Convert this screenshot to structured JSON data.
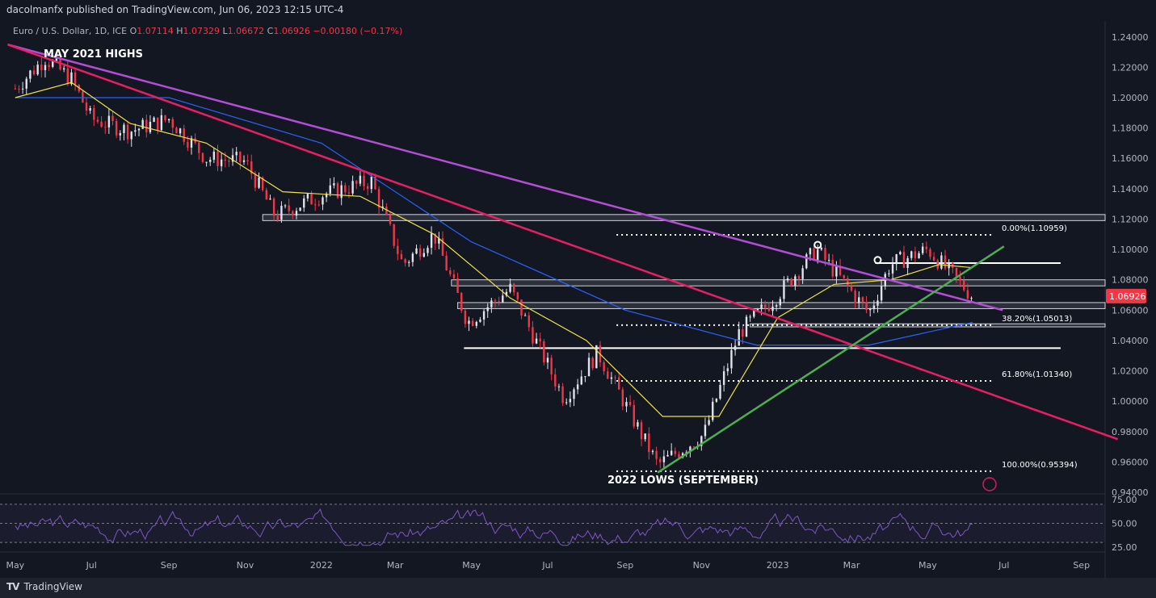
{
  "header": {
    "published": "dacolmanfx published on TradingView.com, Jun 06, 2023 12:15 UTC-4"
  },
  "legend": {
    "symbol": "Euro / U.S. Dollar, 1D, ICE",
    "o_label": "O",
    "o": "1.07114",
    "h_label": "H",
    "h": "1.07329",
    "l_label": "L",
    "l": "1.06672",
    "c_label": "C",
    "c": "1.06926",
    "change": "−0.00180 (−0.17%)"
  },
  "annotations": {
    "highs": "MAY 2021 HIGHS",
    "lows": "2022 LOWS (SEPTEMBER)"
  },
  "footer": {
    "brand": "TradingView",
    "logo_icon": "tradingview-logo-icon"
  },
  "colors": {
    "background": "#131722",
    "up": "#e0e3eb",
    "down": "#f23645",
    "purple_trend": "#b44dd6",
    "red_trend": "#e91e63",
    "green_trend": "#4caf50",
    "ma50": "#f0e04a",
    "ma200": "#2962ff",
    "rsi": "#7e57c2",
    "price_label": "#f23645"
  },
  "chart_data": {
    "type": "candlestick",
    "x_ticks": [
      "May",
      "Jul",
      "Sep",
      "Nov",
      "2022",
      "Mar",
      "May",
      "Jul",
      "Sep",
      "Nov",
      "2023",
      "Mar",
      "May",
      "Jul",
      "Sep"
    ],
    "y_ticks": [
      "1.24000",
      "1.22000",
      "1.20000",
      "1.18000",
      "1.16000",
      "1.14000",
      "1.12000",
      "1.10000",
      "1.08000",
      "1.06000",
      "1.04000",
      "1.02000",
      "1.00000",
      "0.98000",
      "0.96000",
      "0.94000"
    ],
    "ylim": [
      0.9395,
      1.2505
    ],
    "last_price": "1.06926",
    "price_path": [
      [
        "2021-05-01",
        1.206
      ],
      [
        "2021-05-25",
        1.226
      ],
      [
        "2021-06-15",
        1.212
      ],
      [
        "2021-07-01",
        1.186
      ],
      [
        "2021-08-01",
        1.178
      ],
      [
        "2021-09-01",
        1.186
      ],
      [
        "2021-10-01",
        1.16
      ],
      [
        "2021-11-01",
        1.158
      ],
      [
        "2021-11-25",
        1.122
      ],
      [
        "2022-01-01",
        1.136
      ],
      [
        "2022-02-10",
        1.145
      ],
      [
        "2022-03-07",
        1.09
      ],
      [
        "2022-04-01",
        1.11
      ],
      [
        "2022-04-28",
        1.052
      ],
      [
        "2022-06-01",
        1.074
      ],
      [
        "2022-07-14",
        1.002
      ],
      [
        "2022-08-10",
        1.032
      ],
      [
        "2022-09-01",
        0.998
      ],
      [
        "2022-09-27",
        0.958
      ],
      [
        "2022-11-03",
        0.978
      ],
      [
        "2022-12-01",
        1.045
      ],
      [
        "2023-01-01",
        1.07
      ],
      [
        "2023-02-01",
        1.1
      ],
      [
        "2023-03-15",
        1.058
      ],
      [
        "2023-04-01",
        1.09
      ],
      [
        "2023-05-01",
        1.1
      ],
      [
        "2023-06-06",
        1.069
      ]
    ],
    "ma50_path": [
      [
        "2021-05-01",
        1.2
      ],
      [
        "2021-06-15",
        1.21
      ],
      [
        "2021-08-01",
        1.183
      ],
      [
        "2021-10-01",
        1.17
      ],
      [
        "2021-12-01",
        1.138
      ],
      [
        "2022-02-01",
        1.135
      ],
      [
        "2022-04-01",
        1.11
      ],
      [
        "2022-06-01",
        1.068
      ],
      [
        "2022-08-01",
        1.04
      ],
      [
        "2022-10-01",
        0.99
      ],
      [
        "2022-11-15",
        0.99
      ],
      [
        "2023-01-01",
        1.055
      ],
      [
        "2023-02-15",
        1.077
      ],
      [
        "2023-04-01",
        1.08
      ],
      [
        "2023-05-10",
        1.09
      ],
      [
        "2023-06-06",
        1.088
      ]
    ],
    "ma200_path": [
      [
        "2021-05-01",
        1.2
      ],
      [
        "2021-09-01",
        1.2
      ],
      [
        "2022-01-01",
        1.17
      ],
      [
        "2022-05-01",
        1.105
      ],
      [
        "2022-09-01",
        1.06
      ],
      [
        "2022-12-15",
        1.037
      ],
      [
        "2023-03-15",
        1.037
      ],
      [
        "2023-06-06",
        1.052
      ]
    ],
    "trendlines": [
      {
        "name": "purple",
        "from": [
          "2021-04-25",
          1.235
        ],
        "to": [
          "2023-06-30",
          1.06
        ]
      },
      {
        "name": "red",
        "from": [
          "2021-04-25",
          1.235
        ],
        "to": [
          "2023-09-30",
          0.975
        ]
      },
      {
        "name": "green",
        "from": [
          "2022-09-27",
          0.953
        ],
        "to": [
          "2023-07-01",
          1.102
        ]
      }
    ],
    "zones": [
      {
        "from": "2021-11-15",
        "top": 1.123,
        "bottom": 1.119
      },
      {
        "from": "2022-04-15",
        "top": 1.08,
        "bottom": 1.076
      },
      {
        "from": "2022-04-20",
        "top": 1.065,
        "bottom": 1.061
      },
      {
        "from": "2022-12-10",
        "top": 1.051,
        "bottom": 1.049
      }
    ],
    "solid_lines": [
      {
        "from": "2022-04-25",
        "y": 1.035
      },
      {
        "from": "2023-03-20",
        "y": 1.091
      }
    ],
    "fib_levels": [
      {
        "label": "0.00%(1.10959)",
        "value": 1.10959,
        "from": "2022-08-25"
      },
      {
        "label": "38.20%(1.05013)",
        "value": 1.05013,
        "from": "2022-08-25"
      },
      {
        "label": "61.80%(1.01340)",
        "value": 1.0134,
        "from": "2022-08-25"
      },
      {
        "label": "100.00%(0.95394)",
        "value": 0.95394,
        "from": "2022-08-25"
      }
    ],
    "pivots": [
      [
        "2023-02-02",
        1.103
      ],
      [
        "2023-03-22",
        1.093
      ]
    ],
    "rsi": {
      "y_ticks": [
        "75.00",
        "50.00",
        "25.00"
      ],
      "ylim": [
        20,
        80
      ],
      "levels": [
        70,
        50,
        30
      ]
    }
  }
}
